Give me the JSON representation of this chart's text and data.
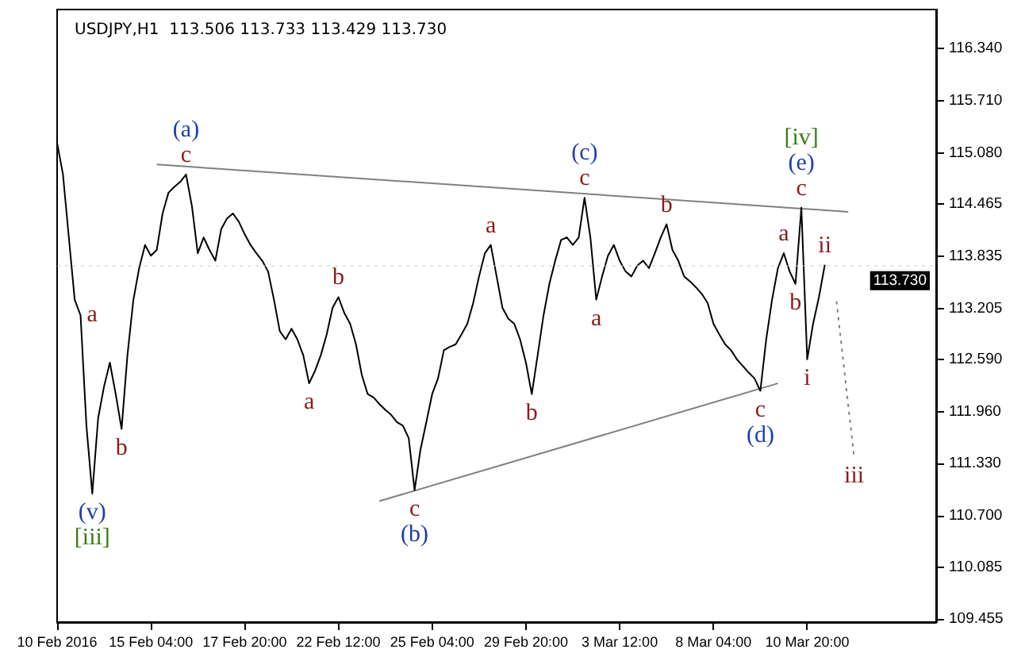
{
  "chart_data": {
    "type": "line",
    "title": "USDJPY,H1  113.506 113.733 113.429 113.730",
    "categories": [
      "10 Feb 2016",
      null,
      null,
      null,
      null,
      null,
      null,
      null,
      null,
      null,
      null,
      null,
      null,
      null,
      null,
      null,
      "15 Feb 04:00",
      null,
      null,
      null,
      null,
      null,
      null,
      null,
      null,
      null,
      null,
      null,
      null,
      null,
      null,
      null,
      "17 Feb 20:00",
      null,
      null,
      null,
      null,
      null,
      null,
      null,
      null,
      null,
      null,
      null,
      null,
      null,
      null,
      null,
      "22 Feb 12:00",
      null,
      null,
      null,
      null,
      null,
      null,
      null,
      null,
      null,
      null,
      null,
      null,
      null,
      null,
      null,
      "25 Feb 04:00",
      null,
      null,
      null,
      null,
      null,
      null,
      null,
      null,
      null,
      null,
      null,
      null,
      null,
      null,
      null,
      "29 Feb 20:00",
      null,
      null,
      null,
      null,
      null,
      null,
      null,
      null,
      null,
      null,
      null,
      null,
      null,
      null,
      null,
      "3 Mar 12:00",
      null,
      null,
      null,
      null,
      null,
      null,
      null,
      null,
      null,
      null,
      null,
      null,
      null,
      null,
      null,
      "8 Mar 04:00",
      null,
      null,
      null,
      null,
      null,
      null,
      null,
      null,
      null,
      null,
      null,
      null,
      null,
      null,
      null,
      "10 Mar 20:00",
      null,
      null,
      null,
      null,
      null,
      null,
      null,
      null,
      null,
      null,
      null,
      null,
      null,
      null,
      null,
      null,
      null,
      null,
      null,
      null,
      null,
      null
    ],
    "series": [
      {
        "color": "#000000",
        "values": [
          115.2,
          114.82,
          114.06,
          113.31,
          113.12,
          111.79,
          110.97,
          111.88,
          112.26,
          112.55,
          112.17,
          111.75,
          112.64,
          113.3,
          113.69,
          113.97,
          113.84,
          113.91,
          114.35,
          114.6,
          114.67,
          114.73,
          114.82,
          114.44,
          113.87,
          114.06,
          113.91,
          113.78,
          114.16,
          114.29,
          114.35,
          114.25,
          114.1,
          113.97,
          113.87,
          113.78,
          113.65,
          113.31,
          112.93,
          112.83,
          112.96,
          112.83,
          112.64,
          112.3,
          112.45,
          112.64,
          112.89,
          113.21,
          113.34,
          113.15,
          113.02,
          112.77,
          112.4,
          112.17,
          112.13,
          112.05,
          111.98,
          111.92,
          111.83,
          111.79,
          111.64,
          111.01,
          111.5,
          111.83,
          112.17,
          112.36,
          112.7,
          112.74,
          112.77,
          112.89,
          113.02,
          113.27,
          113.59,
          113.87,
          113.97,
          113.59,
          113.21,
          113.08,
          113.02,
          112.83,
          112.55,
          112.17,
          112.64,
          113.12,
          113.5,
          113.78,
          114.03,
          114.06,
          113.97,
          114.06,
          114.54,
          114.06,
          113.31,
          113.59,
          113.84,
          113.97,
          113.78,
          113.65,
          113.59,
          113.72,
          113.78,
          113.69,
          113.87,
          114.06,
          114.22,
          113.91,
          113.78,
          113.59,
          113.53,
          113.46,
          113.38,
          113.27,
          113.02,
          112.89,
          112.77,
          112.7,
          112.59,
          112.51,
          112.43,
          112.36,
          112.21,
          112.83,
          113.31,
          113.69,
          113.87,
          113.65,
          113.5,
          114.42,
          112.59,
          113.02,
          113.34,
          113.73,
          null,
          null,
          null,
          null,
          null,
          null,
          null,
          null,
          null,
          null,
          null,
          null,
          null,
          null,
          null,
          null,
          null,
          null,
          null
        ],
        "value_labels": [
          null,
          null,
          null,
          null,
          "a",
          null,
          "(v)\n[iii]",
          null,
          null,
          null,
          null,
          "b",
          null,
          null,
          null,
          null,
          null,
          null,
          null,
          null,
          null,
          null,
          "(a)\nc",
          null,
          null,
          null,
          null,
          null,
          null,
          null,
          null,
          null,
          null,
          null,
          null,
          null,
          null,
          null,
          null,
          null,
          null,
          null,
          null,
          "a",
          null,
          null,
          null,
          null,
          "b",
          null,
          null,
          null,
          null,
          null,
          null,
          null,
          null,
          null,
          null,
          null,
          null,
          "c\n(b)",
          null,
          null,
          null,
          null,
          null,
          null,
          null,
          null,
          null,
          null,
          null,
          null,
          "a",
          null,
          null,
          null,
          null,
          null,
          null,
          "b",
          null,
          null,
          null,
          null,
          null,
          null,
          null,
          null,
          "(c)\nc",
          null,
          "a",
          null,
          null,
          null,
          null,
          null,
          null,
          null,
          null,
          null,
          null,
          null,
          "b",
          null,
          null,
          null,
          null,
          null,
          null,
          null,
          null,
          null,
          null,
          null,
          null,
          null,
          null,
          null,
          "c\n(d)",
          null,
          null,
          null,
          "a",
          null,
          "b",
          "[iv]\n(e)\nc",
          "i",
          null,
          null,
          "ii",
          null,
          null,
          null,
          null,
          null,
          null,
          null,
          null,
          null,
          null,
          null,
          null,
          null,
          null,
          null,
          null,
          null,
          null,
          null
        ]
      },
      {
        "color": "#808080",
        "values": [
          null,
          null,
          null,
          null,
          null,
          null,
          null,
          null,
          null,
          null,
          null,
          null,
          null,
          null,
          null,
          null,
          null,
          114.94,
          null,
          null,
          null,
          null,
          null,
          null,
          null,
          null,
          null,
          null,
          null,
          null,
          null,
          null,
          null,
          null,
          null,
          null,
          null,
          null,
          null,
          null,
          null,
          null,
          null,
          null,
          null,
          null,
          null,
          null,
          null,
          null,
          null,
          null,
          null,
          null,
          null,
          null,
          null,
          null,
          null,
          null,
          null,
          null,
          null,
          null,
          null,
          null,
          null,
          null,
          null,
          null,
          null,
          null,
          null,
          null,
          null,
          null,
          null,
          null,
          null,
          null,
          null,
          null,
          null,
          null,
          null,
          null,
          null,
          null,
          null,
          null,
          null,
          null,
          null,
          null,
          null,
          null,
          null,
          null,
          null,
          null,
          null,
          null,
          null,
          null,
          null,
          null,
          null,
          null,
          null,
          null,
          null,
          null,
          null,
          null,
          null,
          null,
          null,
          null,
          null,
          null,
          null,
          null,
          null,
          null,
          null,
          null,
          null,
          null,
          null,
          null,
          null,
          null,
          null,
          null,
          null,
          114.37,
          null,
          null,
          null,
          null,
          null,
          null,
          null,
          null,
          null,
          null,
          null,
          null,
          null,
          null,
          null
        ]
      },
      {
        "color": "#808080",
        "values": [
          null,
          null,
          null,
          null,
          null,
          null,
          null,
          null,
          null,
          null,
          null,
          null,
          null,
          null,
          null,
          null,
          null,
          null,
          null,
          null,
          null,
          null,
          null,
          null,
          null,
          null,
          null,
          null,
          null,
          null,
          null,
          null,
          null,
          null,
          null,
          null,
          null,
          null,
          null,
          null,
          null,
          null,
          null,
          null,
          null,
          null,
          null,
          null,
          null,
          null,
          null,
          null,
          null,
          null,
          null,
          110.88,
          null,
          null,
          null,
          null,
          null,
          null,
          null,
          null,
          null,
          null,
          null,
          null,
          null,
          null,
          null,
          null,
          null,
          null,
          null,
          null,
          null,
          null,
          null,
          null,
          null,
          null,
          null,
          null,
          null,
          null,
          null,
          null,
          null,
          null,
          null,
          null,
          null,
          null,
          null,
          null,
          null,
          null,
          null,
          null,
          null,
          null,
          null,
          null,
          null,
          null,
          null,
          null,
          null,
          null,
          null,
          null,
          null,
          null,
          null,
          null,
          null,
          null,
          null,
          null,
          null,
          null,
          null,
          112.3,
          null,
          null,
          null,
          null,
          null,
          null,
          null,
          null,
          null,
          null,
          null,
          null,
          null,
          null,
          null,
          null,
          null,
          null,
          null,
          null,
          null,
          null,
          null,
          null,
          null,
          null,
          null
        ]
      },
      {
        "color": "#808080",
        "line_style": "dotted",
        "values": [
          null,
          null,
          null,
          null,
          null,
          null,
          null,
          null,
          null,
          null,
          null,
          null,
          null,
          null,
          null,
          null,
          null,
          null,
          null,
          null,
          null,
          null,
          null,
          null,
          null,
          null,
          null,
          null,
          null,
          null,
          null,
          null,
          null,
          null,
          null,
          null,
          null,
          null,
          null,
          null,
          null,
          null,
          null,
          null,
          null,
          null,
          null,
          null,
          null,
          null,
          null,
          null,
          null,
          null,
          null,
          null,
          null,
          null,
          null,
          null,
          null,
          null,
          null,
          null,
          null,
          null,
          null,
          null,
          null,
          null,
          null,
          null,
          null,
          null,
          null,
          null,
          null,
          null,
          null,
          null,
          null,
          null,
          null,
          null,
          null,
          null,
          null,
          null,
          null,
          null,
          null,
          null,
          null,
          null,
          null,
          null,
          null,
          null,
          null,
          null,
          null,
          null,
          null,
          null,
          null,
          null,
          null,
          null,
          null,
          null,
          null,
          null,
          null,
          null,
          null,
          null,
          null,
          null,
          null,
          null,
          null,
          null,
          null,
          null,
          null,
          null,
          null,
          null,
          null,
          null,
          null,
          null,
          null,
          113.29,
          null,
          null,
          111.41,
          null,
          null,
          null,
          null,
          null,
          null,
          null,
          null,
          null,
          null,
          null,
          null,
          null,
          null
        ],
        "value_labels": [
          null,
          null,
          null,
          null,
          null,
          null,
          null,
          null,
          null,
          null,
          null,
          null,
          null,
          null,
          null,
          null,
          null,
          null,
          null,
          null,
          null,
          null,
          null,
          null,
          null,
          null,
          null,
          null,
          null,
          null,
          null,
          null,
          null,
          null,
          null,
          null,
          null,
          null,
          null,
          null,
          null,
          null,
          null,
          null,
          null,
          null,
          null,
          null,
          null,
          null,
          null,
          null,
          null,
          null,
          null,
          null,
          null,
          null,
          null,
          null,
          null,
          null,
          null,
          null,
          null,
          null,
          null,
          null,
          null,
          null,
          null,
          null,
          null,
          null,
          null,
          null,
          null,
          null,
          null,
          null,
          null,
          null,
          null,
          null,
          null,
          null,
          null,
          null,
          null,
          null,
          null,
          null,
          null,
          null,
          null,
          null,
          null,
          null,
          null,
          null,
          null,
          null,
          null,
          null,
          null,
          null,
          null,
          null,
          null,
          null,
          null,
          null,
          null,
          null,
          null,
          null,
          null,
          null,
          null,
          null,
          null,
          null,
          null,
          null,
          null,
          null,
          null,
          null,
          null,
          null,
          null,
          null,
          null,
          null,
          null,
          null,
          "iii",
          null,
          null,
          null,
          null,
          null,
          null,
          null,
          null,
          null,
          null,
          null,
          null,
          null,
          null
        ]
      }
    ],
    "ylim": [
      109.42,
      116.81
    ],
    "yticks": [
      {
        "value": 109.455,
        "label": "109.455"
      },
      {
        "value": 110.085,
        "label": "110.085"
      },
      {
        "value": 110.7,
        "label": "110.700"
      },
      {
        "value": 111.33,
        "label": "111.330"
      },
      {
        "value": 111.96,
        "label": "111.960"
      },
      {
        "value": 112.59,
        "label": "112.590"
      },
      {
        "value": 113.205,
        "label": "113.205"
      },
      {
        "value": 113.835,
        "label": "113.835"
      },
      {
        "value": 114.465,
        "label": "114.465"
      },
      {
        "value": 115.08,
        "label": "115.080"
      },
      {
        "value": 115.71,
        "label": "115.710"
      },
      {
        "value": 116.34,
        "label": "116.340"
      }
    ],
    "ref_lines": [
      {
        "axis": "y",
        "value": 113.73,
        "label": "113.730"
      }
    ]
  }
}
